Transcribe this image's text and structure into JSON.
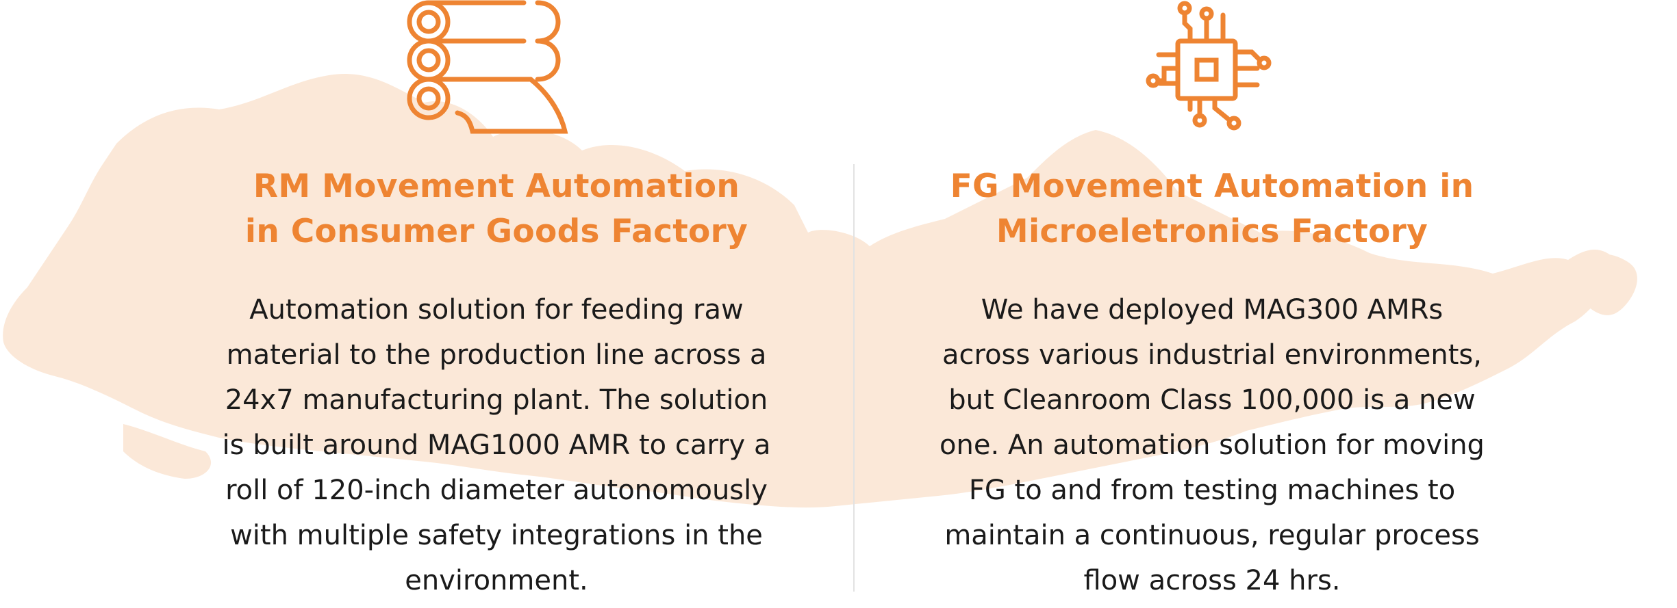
{
  "colors": {
    "accent": "#ee8432",
    "text": "#1a1a1a",
    "map": "#fbe8d8",
    "divider": "#e2e2e2"
  },
  "background": {
    "icon": "singapore-map-silhouette"
  },
  "cards": [
    {
      "icon": "paper-rolls-icon",
      "title_lines": [
        "RM Movement Automation",
        "in Consumer Goods Factory"
      ],
      "description_lines": [
        "Automation solution for feeding raw",
        "material to the production line across a",
        "24x7 manufacturing plant. The solution",
        "is built around MAG1000 AMR to carry a",
        "roll of 120-inch diameter autonomously",
        "with multiple safety integrations in the",
        "environment."
      ]
    },
    {
      "icon": "microchip-icon",
      "title_lines": [
        "FG Movement Automation in",
        "Microeletronics Factory"
      ],
      "description_lines": [
        "We have deployed MAG300 AMRs",
        "across various industrial environments,",
        "but Cleanroom Class 100,000 is a new",
        "one. An automation solution for moving",
        "FG to and from testing machines to",
        "maintain a continuous, regular process",
        "flow across 24 hrs."
      ]
    }
  ]
}
